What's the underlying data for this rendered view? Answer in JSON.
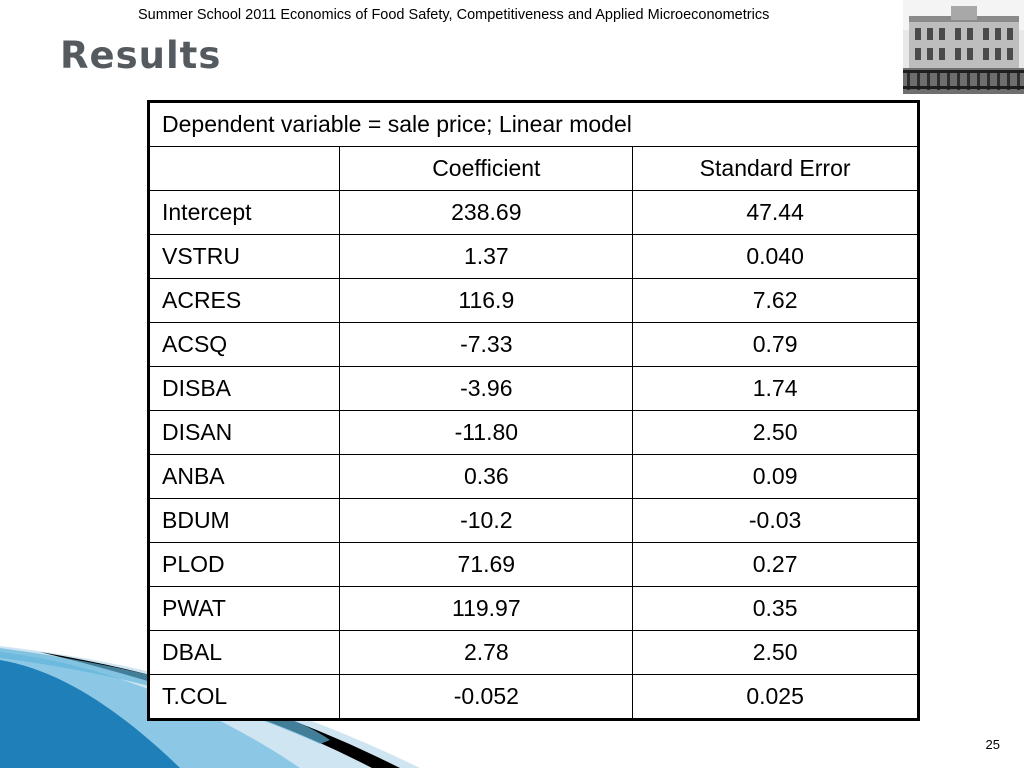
{
  "slide": {
    "header": "Summer School 2011 Economics of Food Safety, Competitiveness and Applied Microeconometrics",
    "title": "Results",
    "page_number": "25"
  },
  "table": {
    "caption": "Dependent variable = sale price; Linear model",
    "columns": [
      "",
      "Coefficient",
      "Standard Error"
    ],
    "rows": [
      {
        "variable": "Intercept",
        "coefficient": "238.69",
        "std_error": "47.44"
      },
      {
        "variable": "VSTRU",
        "coefficient": "1.37",
        "std_error": "0.040"
      },
      {
        "variable": "ACRES",
        "coefficient": "116.9",
        "std_error": "7.62"
      },
      {
        "variable": "ACSQ",
        "coefficient": "-7.33",
        "std_error": "0.79"
      },
      {
        "variable": "DISBA",
        "coefficient": "-3.96",
        "std_error": "1.74"
      },
      {
        "variable": "DISAN",
        "coefficient": "-11.80",
        "std_error": "2.50"
      },
      {
        "variable": "ANBA",
        "coefficient": "0.36",
        "std_error": "0.09"
      },
      {
        "variable": "BDUM",
        "coefficient": "-10.2",
        "std_error": "-0.03"
      },
      {
        "variable": "PLOD",
        "coefficient": "71.69",
        "std_error": "0.27"
      },
      {
        "variable": "PWAT",
        "coefficient": "119.97",
        "std_error": "0.35"
      },
      {
        "variable": "DBAL",
        "coefficient": "2.78",
        "std_error": "2.50"
      },
      {
        "variable": "T.COL",
        "coefficient": "-0.052",
        "std_error": "0.025"
      }
    ]
  },
  "colors": {
    "title": "#555a5f",
    "wave_light": "#cfe6f2",
    "wave_mid": "#5fb3da",
    "wave_dark": "#1f7fb8",
    "wave_black": "#000000"
  }
}
